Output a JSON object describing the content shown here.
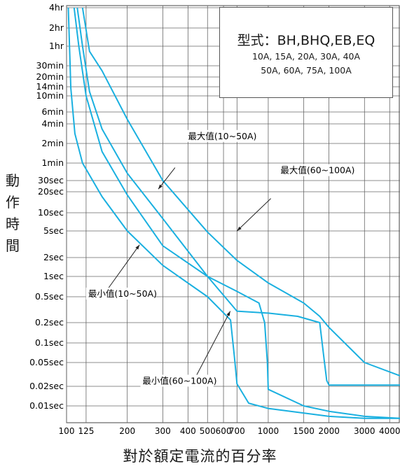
{
  "chart_data": {
    "type": "line",
    "title": "",
    "ylabel": "動作時間",
    "xlabel": "對於額定電流的百分率",
    "x_scale": "log",
    "y_scale": "log",
    "x_ticks": [
      {
        "value": 100,
        "label": "100"
      },
      {
        "value": 125,
        "label": "125"
      },
      {
        "value": 200,
        "label": "200"
      },
      {
        "value": 300,
        "label": "300"
      },
      {
        "value": 400,
        "label": "400"
      },
      {
        "value": 500,
        "label": "500"
      },
      {
        "value": 600,
        "label": "600"
      },
      {
        "value": 700,
        "label": "700"
      },
      {
        "value": 1000,
        "label": "1000"
      },
      {
        "value": 1500,
        "label": "1500"
      },
      {
        "value": 2000,
        "label": "2000"
      },
      {
        "value": 3000,
        "label": "3000"
      },
      {
        "value": 4000,
        "label": "4000"
      }
    ],
    "y_ticks": [
      {
        "value": 14400,
        "label": "4hr"
      },
      {
        "value": 7200,
        "label": "2hr"
      },
      {
        "value": 3600,
        "label": "1hr"
      },
      {
        "value": 1800,
        "label": "30min"
      },
      {
        "value": 1200,
        "label": "20min"
      },
      {
        "value": 840,
        "label": "14min"
      },
      {
        "value": 600,
        "label": "10min"
      },
      {
        "value": 360,
        "label": "6min"
      },
      {
        "value": 240,
        "label": "4min"
      },
      {
        "value": 120,
        "label": "2min"
      },
      {
        "value": 60,
        "label": "1min"
      },
      {
        "value": 30,
        "label": "30sec"
      },
      {
        "value": 20,
        "label": "20sec"
      },
      {
        "value": 10,
        "label": "10sec"
      },
      {
        "value": 5,
        "label": "5sec"
      },
      {
        "value": 2,
        "label": "2sec"
      },
      {
        "value": 1,
        "label": "1sec"
      },
      {
        "value": 0.5,
        "label": "0.5sec"
      },
      {
        "value": 0.2,
        "label": "0.2sec"
      },
      {
        "value": 0.1,
        "label": "0.1sec"
      },
      {
        "value": 0.05,
        "label": "0.05sec"
      },
      {
        "value": 0.02,
        "label": "0.02sec"
      },
      {
        "value": 0.01,
        "label": "0.01sec"
      }
    ],
    "xlim": [
      100,
      4500
    ],
    "ylim": [
      0.005,
      14400
    ],
    "grid": true,
    "line_color": "#1ab0e0",
    "series": [
      {
        "x": [
          113,
          120,
          130,
          150,
          200,
          300,
          500,
          700,
          1000,
          1400,
          1800,
          1900,
          1950,
          2000,
          2500,
          3000,
          4500
        ],
        "y": [
          14400,
          3600,
          700,
          200,
          40,
          8,
          1.0,
          0.3,
          0.28,
          0.25,
          0.2,
          0.05,
          0.025,
          0.021,
          0.021,
          0.021,
          0.021
        ]
      },
      {
        "x": [
          120,
          130,
          150,
          200,
          300,
          500,
          700,
          1000,
          1500,
          1800,
          2000,
          3000,
          4500
        ],
        "y": [
          14400,
          3000,
          1500,
          280,
          30,
          4.8,
          1.8,
          0.8,
          0.4,
          0.25,
          0.17,
          0.05,
          0.03
        ]
      },
      {
        "x": [
          102,
          105,
          110,
          120,
          150,
          200,
          300,
          500,
          650,
          680,
          700,
          800,
          1000,
          2000,
          3000,
          4500
        ],
        "y": [
          14400,
          800,
          170,
          60,
          17,
          5,
          1.5,
          0.5,
          0.22,
          0.06,
          0.022,
          0.011,
          0.009,
          0.0065,
          0.006,
          0.006
        ]
      },
      {
        "x": [
          109,
          115,
          125,
          150,
          200,
          300,
          500,
          700,
          900,
          960,
          990,
          1000,
          1500,
          2000,
          3000,
          4500
        ],
        "y": [
          14400,
          3600,
          600,
          90,
          18,
          3,
          1.0,
          0.6,
          0.4,
          0.2,
          0.05,
          0.018,
          0.01,
          0.008,
          0.0065,
          0.006
        ]
      }
    ],
    "annotations": [
      {
        "text": "最大值(10~50A)",
        "x": 400,
        "y": 140
      },
      {
        "text": "最大值(60~100A)",
        "x": 1150,
        "y": 40
      },
      {
        "text": "最小值(10~50A)",
        "x": 128,
        "y": 0.5
      },
      {
        "text": "最小值(60~100A)",
        "x": 238,
        "y": 0.022
      }
    ]
  },
  "legend_box": {
    "model": "型式：BH,BHQ,EB,EQ",
    "ratings_1": "10A, 15A, 20A, 30A, 40A",
    "ratings_2": "50A, 60A, 75A, 100A"
  }
}
